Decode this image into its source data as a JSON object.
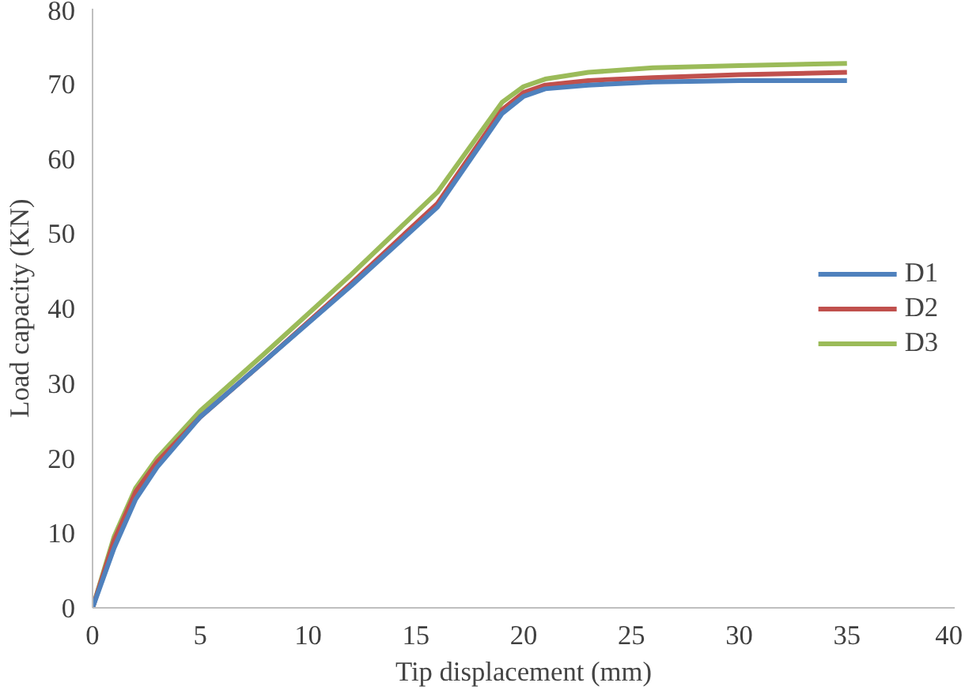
{
  "chart_data": {
    "type": "line",
    "xlabel": "Tip displacement (mm)",
    "ylabel": "Load capacity (KN)",
    "xlim": [
      0,
      40
    ],
    "ylim": [
      0,
      80
    ],
    "xticks": [
      0,
      5,
      10,
      15,
      20,
      25,
      30,
      35,
      40
    ],
    "yticks": [
      0,
      10,
      20,
      30,
      40,
      50,
      60,
      70,
      80
    ],
    "grid": false,
    "legend": "right",
    "marker": "none",
    "line_style": "solid",
    "series": [
      {
        "name": "D1",
        "color": "#4f81bd",
        "x": [
          0,
          1,
          2,
          3,
          5,
          8,
          12,
          16,
          19,
          20,
          21,
          23,
          26,
          30,
          35
        ],
        "values": [
          0,
          8,
          14.5,
          18.8,
          25.5,
          33,
          43,
          53.5,
          66,
          68.3,
          69.3,
          69.8,
          70.2,
          70.4,
          70.4
        ]
      },
      {
        "name": "D2",
        "color": "#c0504d",
        "x": [
          0,
          1,
          2,
          3,
          5,
          8,
          12,
          16,
          19,
          20,
          21,
          23,
          26,
          30,
          35
        ],
        "values": [
          0,
          9,
          15.5,
          19.5,
          25.5,
          33,
          43.3,
          54,
          66.5,
          68.8,
          69.8,
          70.4,
          70.8,
          71.2,
          71.5
        ]
      },
      {
        "name": "D3",
        "color": "#9bbb59",
        "x": [
          0,
          1,
          2,
          3,
          5,
          8,
          12,
          16,
          19,
          20,
          21,
          23,
          26,
          30,
          35
        ],
        "values": [
          0,
          9.5,
          16,
          20,
          26.3,
          34,
          44.5,
          55.5,
          67.5,
          69.6,
          70.6,
          71.5,
          72.1,
          72.4,
          72.7
        ]
      }
    ]
  }
}
